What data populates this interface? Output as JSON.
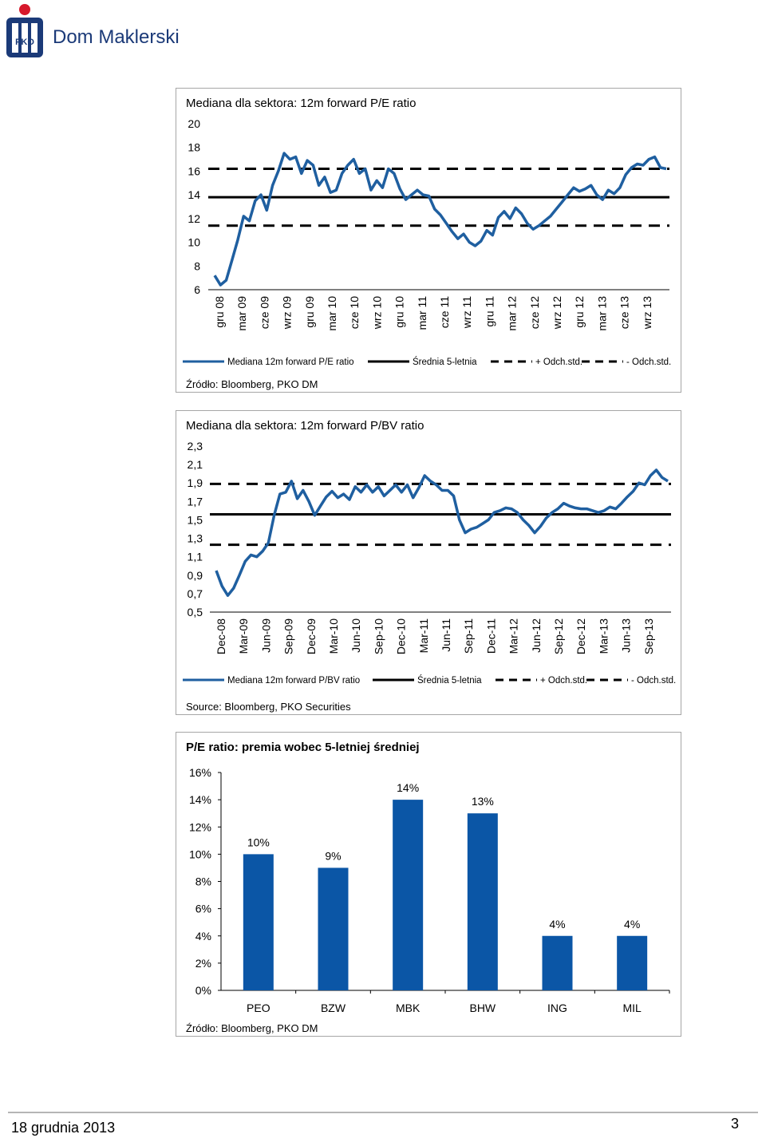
{
  "header": {
    "brand": "Dom Maklerski",
    "logo_text": "PKO"
  },
  "colors": {
    "series": "#1f5fa0",
    "mean": "#000000",
    "bar": "#0b56a6",
    "brand_red": "#d6182b",
    "brand_navy": "#1b3a78"
  },
  "chart_data": [
    {
      "type": "line",
      "title": "Mediana dla sektora: 12m forward P/E ratio",
      "yticks": [
        "20",
        "18",
        "16",
        "14",
        "12",
        "10",
        "8",
        "6"
      ],
      "ylim": [
        6,
        20
      ],
      "xticks": [
        "gru 08",
        "mar 09",
        "cze 09",
        "wrz 09",
        "gru 09",
        "mar 10",
        "cze 10",
        "wrz 10",
        "gru 10",
        "mar 11",
        "cze 11",
        "wrz 11",
        "gru 11",
        "mar 12",
        "cze 12",
        "wrz 12",
        "gru 12",
        "mar 13",
        "cze 13",
        "wrz 13"
      ],
      "series": [
        {
          "name": "Mediana 12m forward P/E ratio",
          "values": [
            7.2,
            6.4,
            6.8,
            8.5,
            10.2,
            12.2,
            11.8,
            13.5,
            14.0,
            12.7,
            14.8,
            16.0,
            17.5,
            17.0,
            17.2,
            15.8,
            16.9,
            16.5,
            14.8,
            15.5,
            14.2,
            14.4,
            15.8,
            16.5,
            17.0,
            15.8,
            16.2,
            14.4,
            15.2,
            14.6,
            16.2,
            15.8,
            14.5,
            13.6,
            14.0,
            14.4,
            14.0,
            13.9,
            12.8,
            12.3,
            11.6,
            10.9,
            10.3,
            10.7,
            10.0,
            9.7,
            10.1,
            11.0,
            10.6,
            12.1,
            12.6,
            12.0,
            12.9,
            12.4,
            11.6,
            11.1,
            11.4,
            11.8,
            12.2,
            12.8,
            13.4,
            14.0,
            14.6,
            14.3,
            14.5,
            14.8,
            14.0,
            13.6,
            14.4,
            14.1,
            14.6,
            15.7,
            16.3,
            16.6,
            16.5,
            17.0,
            17.2,
            16.3,
            16.2
          ]
        },
        {
          "name": "Średnia 5-letnia",
          "values": [
            13.8,
            13.8
          ]
        },
        {
          "name": "+ Odch.std.",
          "values": [
            16.2,
            16.2
          ]
        },
        {
          "name": "- Odch.std.",
          "values": [
            11.4,
            11.4
          ]
        }
      ],
      "source": "Źródło: Bloomberg, PKO DM"
    },
    {
      "type": "line",
      "title": "Mediana dla sektora: 12m forward P/BV ratio",
      "yticks": [
        "2,3",
        "2,1",
        "1,9",
        "1,7",
        "1,5",
        "1,3",
        "1,1",
        "0,9",
        "0,7",
        "0,5"
      ],
      "ylim": [
        0.5,
        2.3
      ],
      "xticks": [
        "Dec-08",
        "Mar-09",
        "Jun-09",
        "Sep-09",
        "Dec-09",
        "Mar-10",
        "Jun-10",
        "Sep-10",
        "Dec-10",
        "Mar-11",
        "Jun-11",
        "Sep-11",
        "Dec-11",
        "Mar-12",
        "Jun-12",
        "Sep-12",
        "Dec-12",
        "Mar-13",
        "Jun-13",
        "Sep-13"
      ],
      "series": [
        {
          "name": "Mediana 12m forward P/BV ratio",
          "values": [
            0.95,
            0.78,
            0.68,
            0.76,
            0.9,
            1.05,
            1.12,
            1.1,
            1.16,
            1.25,
            1.55,
            1.78,
            1.8,
            1.92,
            1.73,
            1.82,
            1.7,
            1.55,
            1.65,
            1.75,
            1.81,
            1.74,
            1.78,
            1.72,
            1.86,
            1.8,
            1.88,
            1.8,
            1.86,
            1.76,
            1.82,
            1.88,
            1.8,
            1.88,
            1.74,
            1.85,
            1.98,
            1.92,
            1.88,
            1.82,
            1.82,
            1.76,
            1.5,
            1.36,
            1.4,
            1.42,
            1.46,
            1.5,
            1.58,
            1.6,
            1.63,
            1.62,
            1.58,
            1.5,
            1.44,
            1.36,
            1.43,
            1.52,
            1.58,
            1.62,
            1.68,
            1.65,
            1.63,
            1.62,
            1.62,
            1.6,
            1.58,
            1.6,
            1.64,
            1.62,
            1.68,
            1.75,
            1.81,
            1.9,
            1.88,
            1.98,
            2.04,
            1.96,
            1.92
          ]
        },
        {
          "name": "Średnia 5-letnia",
          "values": [
            1.56,
            1.56
          ]
        },
        {
          "name": "+ Odch.std.",
          "values": [
            1.89,
            1.89
          ]
        },
        {
          "name": "- Odch.std.",
          "values": [
            1.23,
            1.23
          ]
        }
      ],
      "source": "Source: Bloomberg, PKO Securities"
    },
    {
      "type": "bar",
      "title": "P/E ratio: premia wobec 5-letniej średniej",
      "yticks": [
        "16%",
        "14%",
        "12%",
        "10%",
        "8%",
        "6%",
        "4%",
        "2%",
        "0%"
      ],
      "ylim": [
        0,
        16
      ],
      "categories": [
        "PEO",
        "BZW",
        "MBK",
        "BHW",
        "ING",
        "MIL"
      ],
      "values": [
        10,
        9,
        14,
        13,
        4,
        4
      ],
      "value_labels": [
        "10%",
        "9%",
        "14%",
        "13%",
        "4%",
        "4%"
      ],
      "source": "Źródło: Bloomberg, PKO DM"
    }
  ],
  "footer": {
    "date": "18 grudnia 2013",
    "page": "3"
  }
}
